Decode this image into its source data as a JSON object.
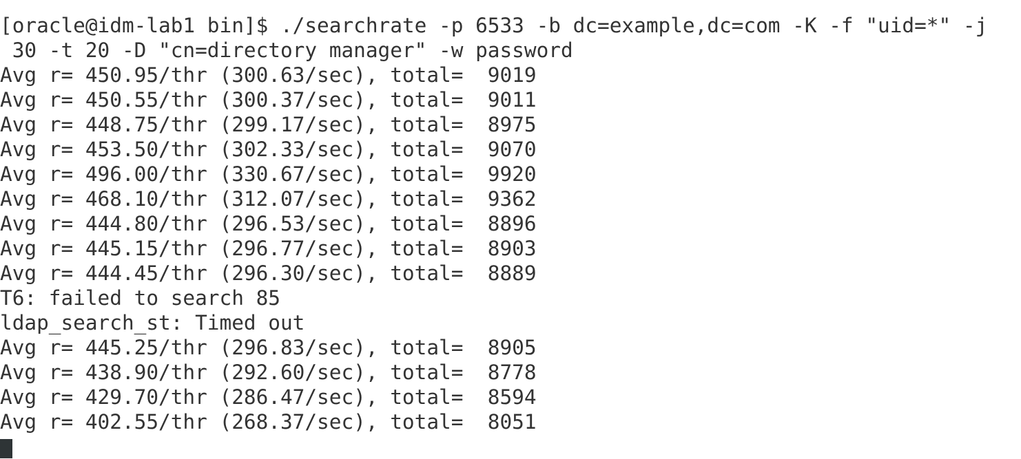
{
  "terminal": {
    "lines": [
      "[oracle@idm-lab1 bin]$ ./searchrate -p 6533 -b dc=example,dc=com -K -f \"uid=*\" -j",
      " 30 -t 20 -D \"cn=directory manager\" -w password",
      "Avg r= 450.95/thr (300.63/sec), total=  9019",
      "Avg r= 450.55/thr (300.37/sec), total=  9011",
      "Avg r= 448.75/thr (299.17/sec), total=  8975",
      "Avg r= 453.50/thr (302.33/sec), total=  9070",
      "Avg r= 496.00/thr (330.67/sec), total=  9920",
      "Avg r= 468.10/thr (312.07/sec), total=  9362",
      "Avg r= 444.80/thr (296.53/sec), total=  8896",
      "Avg r= 445.15/thr (296.77/sec), total=  8903",
      "Avg r= 444.45/thr (296.30/sec), total=  8889",
      "T6: failed to search 85",
      "ldap_search_st: Timed out",
      "Avg r= 445.25/thr (296.83/sec), total=  8905",
      "Avg r= 438.90/thr (292.60/sec), total=  8778",
      "Avg r= 429.70/thr (286.47/sec), total=  8594",
      "Avg r= 402.55/thr (268.37/sec), total=  8051"
    ],
    "colors": {
      "text": "#333333",
      "background": "#ffffff",
      "cursor": "#2e3436"
    }
  }
}
